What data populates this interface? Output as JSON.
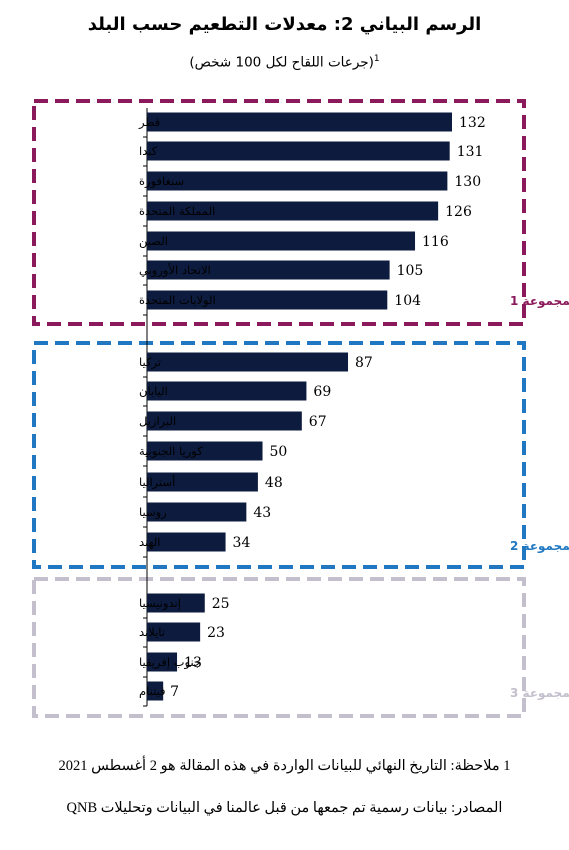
{
  "title": "الرسم البياني 2: معدلات التطعيم حسب البلد",
  "subtitle": "(جرعات اللقاح لكل 100 شخص)",
  "subtitle_note_mark": "1",
  "footer": {
    "note": "1 ملاحظة: التاريخ النهائي للبيانات الواردة في هذه المقالة هو 2 أغسطس 2021",
    "source": "المصادر: بيانات رسمية تم جمعها من قبل عالمنا في البيانات وتحليلات QNB"
  },
  "colors": {
    "bar": "#0d1b3e",
    "group1": "#8b1a5c",
    "group2": "#1f78c1",
    "group3": "#c4bfcd"
  },
  "chart_data": {
    "type": "bar",
    "orientation": "horizontal",
    "title": "الرسم البياني 2: معدلات التطعيم حسب البلد",
    "subtitle": "(جرعات اللقاح لكل 100 شخص)",
    "xlim": [
      0,
      140
    ],
    "grid": false,
    "categories": [
      "قطر",
      "كندا",
      "سنغافورة",
      "المملكة المتحدة",
      "الصين",
      "الاتحاد الأوروبي",
      "الولايات المتحدة",
      "تركيا",
      "اليابان",
      "البرازيل",
      "كوريا الجنوبية",
      "أستراليا",
      "روسيا",
      "الهند",
      "إندونيسيا",
      "تايلاند",
      "جنوب إفريقيا",
      "فيتنام"
    ],
    "values": [
      132,
      131,
      130,
      126,
      116,
      105,
      104,
      87,
      69,
      67,
      50,
      48,
      43,
      34,
      25,
      23,
      13,
      7
    ],
    "groups": [
      {
        "label": "المجموعة 1",
        "count": 7
      },
      {
        "label": "المجموعة 2",
        "count": 7
      },
      {
        "label": "المجموعة 3",
        "count": 4
      }
    ]
  }
}
